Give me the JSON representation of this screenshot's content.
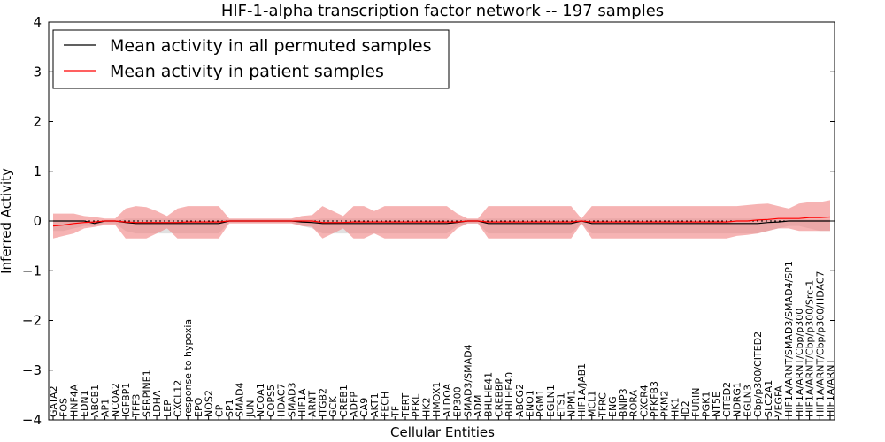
{
  "chart_data": {
    "type": "line",
    "title": "HIF-1-alpha transcription factor network -- 197 samples",
    "xlabel": "Cellular Entities",
    "ylabel": "Inferred Activity",
    "ylim": [
      -4,
      4
    ],
    "yticks": [
      4,
      3,
      2,
      1,
      0,
      -1,
      -2,
      -3,
      -4
    ],
    "ytick_labels": [
      "4",
      "3",
      "2",
      "1",
      "0",
      "−1",
      "−2",
      "−3",
      "−4"
    ],
    "grid": false,
    "legend_position": "top-left",
    "categories": [
      "GATA2",
      "FOS",
      "HNF4A",
      "EDN1",
      "ABCB1",
      "AP1",
      "NCOA2",
      "IGFBP1",
      "TFF3",
      "SERPINE1",
      "LDHA",
      "LEP",
      "CXCL12",
      "response to hypoxia",
      "EPO",
      "NOS2",
      "CP",
      "SP1",
      "SMAD4",
      "JUN",
      "NCOA1",
      "COPS5",
      "HDAC7",
      "SMAD3",
      "HIF1A",
      "ARNT",
      "ITGB2",
      "GCK",
      "CREB1",
      "ADFP",
      "CA9",
      "AKT1",
      "FECH",
      "TF",
      "TERT",
      "PFKL",
      "HK2",
      "HMOX1",
      "ALDOA",
      "EP300",
      "SMAD3/SMAD4",
      "ADM",
      "BHLHE41",
      "CREBBP",
      "BHLHE40",
      "ABCG2",
      "ENO1",
      "PGM1",
      "EGLN1",
      "ETS1",
      "NPM1",
      "HIF1A/JAB1",
      "MCL1",
      "TFRC",
      "ENG",
      "BNIP3",
      "RORA",
      "CXCR4",
      "PFKFB3",
      "PKM2",
      "HK1",
      "ID2",
      "FURIN",
      "PGK1",
      "NT5E",
      "CITED2",
      "NDRG1",
      "EGLN3",
      "Cbp/p300/CITED2",
      "SLC2A1",
      "VEGFA",
      "HIF1A/ARNT/SMAD3/SMAD4/SP1",
      "HIF1A/ARNT/Cbp/p300",
      "HIF1A/ARNT/Cbp/p300/Src-1",
      "HIF1A/ARNT/Cbp/p300/HDAC7",
      "HIF1A/ARNT"
    ],
    "series": [
      {
        "name": "Mean activity in all permuted samples",
        "color": "#000000",
        "values": [
          0.0,
          0.0,
          0.0,
          0.0,
          -0.05,
          0.0,
          0.0,
          -0.03,
          -0.05,
          -0.05,
          -0.05,
          -0.05,
          -0.05,
          -0.05,
          -0.05,
          -0.05,
          -0.05,
          0.0,
          0.0,
          0.0,
          0.0,
          0.0,
          0.0,
          0.0,
          -0.02,
          -0.03,
          -0.05,
          -0.05,
          -0.05,
          -0.05,
          -0.05,
          -0.05,
          -0.05,
          -0.05,
          -0.05,
          -0.05,
          -0.05,
          -0.05,
          -0.05,
          -0.03,
          0.0,
          0.0,
          -0.05,
          -0.05,
          -0.05,
          -0.05,
          -0.05,
          -0.05,
          -0.05,
          -0.05,
          -0.05,
          0.0,
          -0.05,
          -0.05,
          -0.05,
          -0.05,
          -0.05,
          -0.05,
          -0.05,
          -0.05,
          -0.05,
          -0.05,
          -0.05,
          -0.05,
          -0.05,
          -0.05,
          -0.05,
          -0.05,
          -0.05,
          -0.03,
          -0.02,
          0.0,
          0.0,
          0.0,
          0.0,
          0.0
        ],
        "upper": [
          0.0,
          0.0,
          0.0,
          0.0,
          0.0,
          0.0,
          0.0,
          0.05,
          0.05,
          0.05,
          0.05,
          0.05,
          0.05,
          0.05,
          0.05,
          0.05,
          0.05,
          0.03,
          0.03,
          0.03,
          0.03,
          0.03,
          0.03,
          0.03,
          0.03,
          0.03,
          0.05,
          0.05,
          0.05,
          0.05,
          0.05,
          0.05,
          0.05,
          0.05,
          0.05,
          0.05,
          0.05,
          0.05,
          0.05,
          0.03,
          0.03,
          0.03,
          0.05,
          0.05,
          0.05,
          0.05,
          0.05,
          0.05,
          0.05,
          0.05,
          0.05,
          0.03,
          0.05,
          0.05,
          0.05,
          0.05,
          0.05,
          0.05,
          0.05,
          0.05,
          0.05,
          0.05,
          0.05,
          0.05,
          0.05,
          0.05,
          0.05,
          0.05,
          0.05,
          0.05,
          0.03,
          0.03,
          0.03,
          0.03,
          0.03,
          0.03
        ],
        "lower": [
          -0.2,
          -0.2,
          -0.15,
          -0.1,
          -0.1,
          -0.05,
          -0.05,
          -0.2,
          -0.25,
          -0.25,
          -0.25,
          -0.25,
          -0.25,
          -0.25,
          -0.25,
          -0.25,
          -0.25,
          -0.03,
          -0.03,
          -0.03,
          -0.03,
          -0.03,
          -0.03,
          -0.03,
          -0.1,
          -0.15,
          -0.25,
          -0.25,
          -0.25,
          -0.25,
          -0.25,
          -0.25,
          -0.25,
          -0.25,
          -0.25,
          -0.25,
          -0.25,
          -0.25,
          -0.25,
          -0.1,
          -0.05,
          -0.05,
          -0.25,
          -0.25,
          -0.25,
          -0.25,
          -0.25,
          -0.25,
          -0.25,
          -0.25,
          -0.25,
          -0.05,
          -0.25,
          -0.25,
          -0.25,
          -0.25,
          -0.25,
          -0.25,
          -0.25,
          -0.25,
          -0.25,
          -0.25,
          -0.25,
          -0.25,
          -0.25,
          -0.25,
          -0.25,
          -0.25,
          -0.25,
          -0.2,
          -0.15,
          -0.1,
          -0.1,
          -0.15,
          -0.2,
          -0.2
        ]
      },
      {
        "name": "Mean activity in patient samples",
        "color": "#ff0000",
        "values": [
          -0.1,
          -0.08,
          -0.05,
          -0.03,
          -0.02,
          0.0,
          0.0,
          -0.02,
          -0.03,
          -0.03,
          -0.03,
          -0.03,
          -0.03,
          -0.02,
          -0.02,
          -0.02,
          -0.02,
          0.0,
          0.0,
          0.0,
          0.0,
          0.0,
          0.0,
          0.0,
          0.0,
          0.0,
          -0.03,
          -0.03,
          -0.03,
          -0.02,
          -0.02,
          -0.02,
          -0.02,
          -0.02,
          -0.02,
          -0.02,
          -0.02,
          -0.02,
          -0.02,
          -0.02,
          0.0,
          0.0,
          -0.02,
          -0.02,
          -0.02,
          -0.02,
          -0.02,
          -0.02,
          -0.02,
          -0.02,
          -0.02,
          0.0,
          -0.02,
          -0.02,
          -0.02,
          -0.02,
          -0.02,
          -0.02,
          -0.02,
          -0.02,
          -0.02,
          -0.02,
          -0.02,
          -0.02,
          -0.02,
          -0.02,
          0.0,
          0.0,
          0.02,
          0.03,
          0.05,
          0.05,
          0.05,
          0.07,
          0.07,
          0.08
        ],
        "upper": [
          0.15,
          0.15,
          0.15,
          0.1,
          0.08,
          0.05,
          0.05,
          0.25,
          0.3,
          0.28,
          0.2,
          0.1,
          0.25,
          0.3,
          0.3,
          0.3,
          0.3,
          0.05,
          0.05,
          0.05,
          0.05,
          0.05,
          0.05,
          0.05,
          0.1,
          0.12,
          0.3,
          0.2,
          0.1,
          0.3,
          0.3,
          0.2,
          0.3,
          0.3,
          0.3,
          0.3,
          0.3,
          0.3,
          0.3,
          0.15,
          0.05,
          0.05,
          0.3,
          0.3,
          0.3,
          0.3,
          0.3,
          0.3,
          0.3,
          0.3,
          0.3,
          0.05,
          0.3,
          0.3,
          0.3,
          0.3,
          0.3,
          0.3,
          0.3,
          0.3,
          0.3,
          0.3,
          0.3,
          0.3,
          0.3,
          0.3,
          0.3,
          0.32,
          0.34,
          0.35,
          0.3,
          0.25,
          0.35,
          0.38,
          0.38,
          0.42
        ],
        "lower": [
          -0.35,
          -0.3,
          -0.25,
          -0.15,
          -0.12,
          -0.08,
          -0.08,
          -0.35,
          -0.35,
          -0.35,
          -0.25,
          -0.15,
          -0.35,
          -0.35,
          -0.35,
          -0.35,
          -0.35,
          -0.05,
          -0.05,
          -0.05,
          -0.05,
          -0.05,
          -0.05,
          -0.05,
          -0.1,
          -0.12,
          -0.35,
          -0.25,
          -0.15,
          -0.35,
          -0.35,
          -0.25,
          -0.35,
          -0.35,
          -0.35,
          -0.35,
          -0.35,
          -0.35,
          -0.35,
          -0.15,
          -0.05,
          -0.05,
          -0.35,
          -0.35,
          -0.35,
          -0.35,
          -0.35,
          -0.35,
          -0.35,
          -0.35,
          -0.35,
          -0.05,
          -0.35,
          -0.35,
          -0.35,
          -0.35,
          -0.35,
          -0.35,
          -0.35,
          -0.35,
          -0.35,
          -0.35,
          -0.35,
          -0.35,
          -0.35,
          -0.35,
          -0.3,
          -0.28,
          -0.25,
          -0.2,
          -0.15,
          -0.15,
          -0.2,
          -0.2,
          -0.2,
          -0.2
        ]
      }
    ]
  }
}
